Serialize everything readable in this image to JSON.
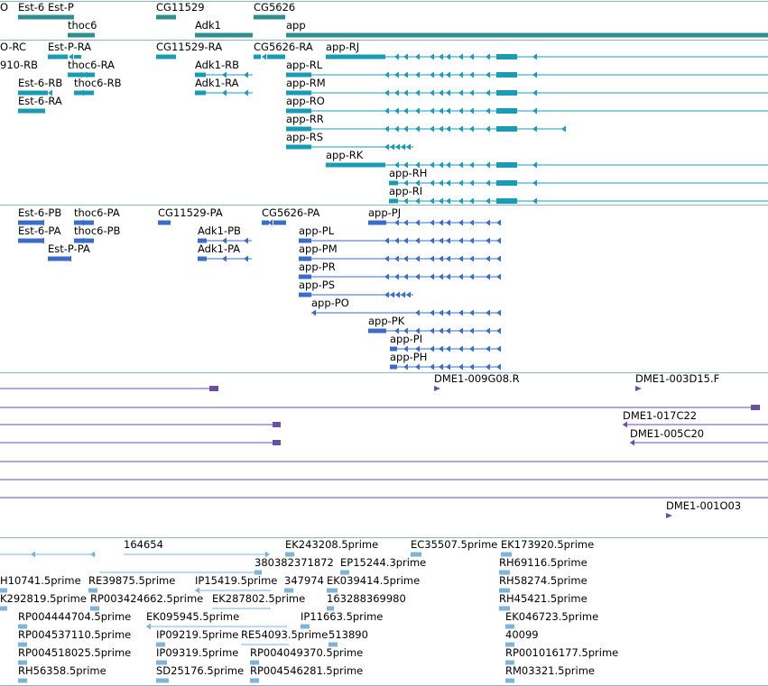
{
  "colors": {
    "gene": "#2f8f8f",
    "transcript": "#1a9bb4",
    "cds": "#3a6cc8",
    "est_match": "#6a4ea0",
    "est_read": "#7fb3d8",
    "divider": "#8fb4c8"
  },
  "gene_track": {
    "labels": [
      "O",
      "Est-6",
      "Est-P",
      "thoc6",
      "CG11529",
      "Adk1",
      "CG5626",
      "app"
    ]
  },
  "transcript_track": {
    "labels": [
      "O-RC",
      "910-RB",
      "Est-6-RB",
      "Est-6-RA",
      "Est-P-RA",
      "thoc6-RA",
      "thoc6-RB",
      "CG11529-RA",
      "Adk1-RB",
      "Adk1-RA",
      "CG5626-RA",
      "app-RJ",
      "app-RL",
      "app-RM",
      "app-RO",
      "app-RR",
      "app-RS",
      "app-RK",
      "app-RH",
      "app-RI"
    ]
  },
  "cds_track": {
    "labels": [
      "Est-6-PB",
      "Est-6-PA",
      "Est-P-PA",
      "thoc6-PA",
      "thoc6-PB",
      "CG11529-PA",
      "Adk1-PB",
      "Adk1-PA",
      "CG5626-PA",
      "app-PJ",
      "app-PL",
      "app-PM",
      "app-PR",
      "app-PS",
      "app-PO",
      "app-PK",
      "app-PI",
      "app-PH"
    ]
  },
  "est_match_track": {
    "labels": [
      "DME1-009G08.R",
      "DME1-003D15.F",
      "DME1-017C22",
      "DME1-005C20",
      "DME1-001O03"
    ]
  },
  "est_read_track": {
    "labels": [
      "164654",
      "EK243208.5prime",
      "EC35507.5prime",
      "EK173920.5prime",
      "380382371872",
      "EP15244.3prime",
      "RH69116.5prime",
      "H10741.5prime",
      "RE39875.5prime",
      "IP15419.5prime",
      "347974",
      "EK039414.5prime",
      "RH58274.5prime",
      "K292819.5prime",
      "RP003424662.5prime",
      "EK287802.5prime",
      "163288369980",
      "RH45421.5prime",
      "RP004444704.5prime",
      "EK095945.5prime",
      "IP11663.5prime",
      "EK046723.5prime",
      "RP004537110.5prime",
      "IP09219.5prime",
      "RE54093.5prime",
      "513890",
      "40099",
      "RP004518025.5prime",
      "IP09319.5prime",
      "RP004049370.5prime",
      "RP001016177.5prime",
      "RH56358.5prime",
      "SD25176.5prime",
      "RP004546281.5prime",
      "RM03321.5prime"
    ]
  }
}
